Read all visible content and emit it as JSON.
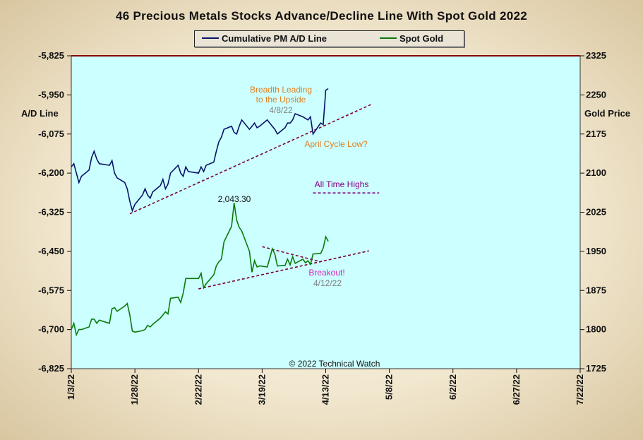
{
  "chart_data": {
    "type": "line",
    "title": "46 Precious Metals Stocks Advance/Decline Line With Spot Gold 2022",
    "ylabel_left": "A/D Line",
    "ylabel_right": "Gold Price",
    "ylim_left": [
      -6825,
      -5825
    ],
    "ylim_right": [
      1725,
      2325
    ],
    "yticks_left": [
      "-5,825",
      "-5,950",
      "-6,075",
      "-6,200",
      "-6,325",
      "-6,450",
      "-6,575",
      "-6,700",
      "-6,825"
    ],
    "yticks_right": [
      "2325",
      "2250",
      "2175",
      "2100",
      "2025",
      "1950",
      "1875",
      "1800",
      "1725"
    ],
    "xticks": [
      "1/3/22",
      "1/28/22",
      "2/22/22",
      "3/19/22",
      "4/13/22",
      "5/8/22",
      "6/2/22",
      "6/27/22",
      "7/22/22"
    ],
    "xlim": [
      "1/3/22",
      "7/22/22"
    ],
    "plot_background": "#ccffff",
    "series": [
      {
        "name": "Cumulative PM A/D Line",
        "axis": "left",
        "color": "#0a1268",
        "x": [
          "2022-01-03",
          "2022-01-04",
          "2022-01-05",
          "2022-01-06",
          "2022-01-07",
          "2022-01-10",
          "2022-01-11",
          "2022-01-12",
          "2022-01-13",
          "2022-01-14",
          "2022-01-18",
          "2022-01-19",
          "2022-01-20",
          "2022-01-21",
          "2022-01-24",
          "2022-01-25",
          "2022-01-26",
          "2022-01-27",
          "2022-01-28",
          "2022-01-31",
          "2022-02-01",
          "2022-02-02",
          "2022-02-03",
          "2022-02-04",
          "2022-02-07",
          "2022-02-08",
          "2022-02-09",
          "2022-02-10",
          "2022-02-11",
          "2022-02-14",
          "2022-02-15",
          "2022-02-16",
          "2022-02-17",
          "2022-02-18",
          "2022-02-22",
          "2022-02-23",
          "2022-02-24",
          "2022-02-25",
          "2022-02-28",
          "2022-03-01",
          "2022-03-02",
          "2022-03-03",
          "2022-03-04",
          "2022-03-07",
          "2022-03-08",
          "2022-03-09",
          "2022-03-10",
          "2022-03-11",
          "2022-03-14",
          "2022-03-15",
          "2022-03-16",
          "2022-03-17",
          "2022-03-18",
          "2022-03-21",
          "2022-03-22",
          "2022-03-23",
          "2022-03-24",
          "2022-03-25",
          "2022-03-28",
          "2022-03-29",
          "2022-03-30",
          "2022-03-31",
          "2022-04-01",
          "2022-04-04",
          "2022-04-05",
          "2022-04-06",
          "2022-04-07",
          "2022-04-08",
          "2022-04-11",
          "2022-04-12",
          "2022-04-13",
          "2022-04-14"
        ],
        "values": [
          -6180,
          -6170,
          -6200,
          -6230,
          -6210,
          -6190,
          -6150,
          -6130,
          -6155,
          -6170,
          -6175,
          -6160,
          -6200,
          -6215,
          -6230,
          -6250,
          -6290,
          -6320,
          -6300,
          -6270,
          -6250,
          -6270,
          -6280,
          -6260,
          -6240,
          -6220,
          -6250,
          -6235,
          -6200,
          -6175,
          -6200,
          -6210,
          -6180,
          -6195,
          -6200,
          -6180,
          -6195,
          -6175,
          -6165,
          -6130,
          -6100,
          -6085,
          -6060,
          -6050,
          -6070,
          -6075,
          -6050,
          -6030,
          -6060,
          -6050,
          -6040,
          -6055,
          -6050,
          -6030,
          -6040,
          -6050,
          -6060,
          -6075,
          -6055,
          -6040,
          -6040,
          -6030,
          -6010,
          -6020,
          -6025,
          -6030,
          -6020,
          -6075,
          -6040,
          -6045,
          -5935,
          -5930
        ]
      },
      {
        "name": "Spot Gold",
        "axis": "right",
        "color": "#0a7a0a",
        "x": [
          "2022-01-03",
          "2022-01-04",
          "2022-01-05",
          "2022-01-06",
          "2022-01-07",
          "2022-01-10",
          "2022-01-11",
          "2022-01-12",
          "2022-01-13",
          "2022-01-14",
          "2022-01-18",
          "2022-01-19",
          "2022-01-20",
          "2022-01-21",
          "2022-01-24",
          "2022-01-25",
          "2022-01-26",
          "2022-01-27",
          "2022-01-28",
          "2022-01-31",
          "2022-02-01",
          "2022-02-02",
          "2022-02-03",
          "2022-02-04",
          "2022-02-07",
          "2022-02-08",
          "2022-02-09",
          "2022-02-10",
          "2022-02-11",
          "2022-02-14",
          "2022-02-15",
          "2022-02-16",
          "2022-02-17",
          "2022-02-18",
          "2022-02-22",
          "2022-02-23",
          "2022-02-24",
          "2022-02-25",
          "2022-02-28",
          "2022-03-01",
          "2022-03-02",
          "2022-03-03",
          "2022-03-04",
          "2022-03-07",
          "2022-03-08",
          "2022-03-09",
          "2022-03-10",
          "2022-03-11",
          "2022-03-14",
          "2022-03-15",
          "2022-03-16",
          "2022-03-17",
          "2022-03-18",
          "2022-03-21",
          "2022-03-22",
          "2022-03-23",
          "2022-03-24",
          "2022-03-25",
          "2022-03-28",
          "2022-03-29",
          "2022-03-30",
          "2022-03-31",
          "2022-04-01",
          "2022-04-04",
          "2022-04-05",
          "2022-04-06",
          "2022-04-07",
          "2022-04-08",
          "2022-04-11",
          "2022-04-12",
          "2022-04-13",
          "2022-04-14"
        ],
        "values": [
          1800,
          1812,
          1790,
          1800,
          1800,
          1805,
          1820,
          1820,
          1812,
          1818,
          1812,
          1840,
          1842,
          1835,
          1845,
          1850,
          1828,
          1797,
          1795,
          1798,
          1800,
          1808,
          1805,
          1810,
          1822,
          1828,
          1834,
          1830,
          1860,
          1862,
          1852,
          1870,
          1898,
          1898,
          1898,
          1908,
          1880,
          1888,
          1905,
          1922,
          1930,
          1935,
          1968,
          1998,
          2043,
          2010,
          1996,
          1989,
          1950,
          1910,
          1932,
          1920,
          1922,
          1920,
          1937,
          1955,
          1945,
          1922,
          1923,
          1935,
          1924,
          1940,
          1927,
          1935,
          1928,
          1932,
          1925,
          1945,
          1946,
          1956,
          1978,
          1969
        ]
      }
    ],
    "annotations": [
      {
        "text": "Breadth Leading",
        "color": "#e08020"
      },
      {
        "text": "to the Upside",
        "color": "#e08020"
      },
      {
        "text": "4/8/22",
        "color": "#808080"
      },
      {
        "text": "April Cycle Low?",
        "color": "#e08020"
      },
      {
        "text": "All Time Highs",
        "color": "#800080"
      },
      {
        "text": "2,043.30",
        "color": "#111111"
      },
      {
        "text": "Breakout!",
        "color": "#e020c0"
      },
      {
        "text": "4/12/22",
        "color": "#808080"
      },
      {
        "text": "© 2022 Technical Watch",
        "color": "#111111"
      }
    ],
    "trendline_color": "#7a0030",
    "resistance_color": "#800080",
    "grid": false,
    "legend_position": "top-center"
  }
}
